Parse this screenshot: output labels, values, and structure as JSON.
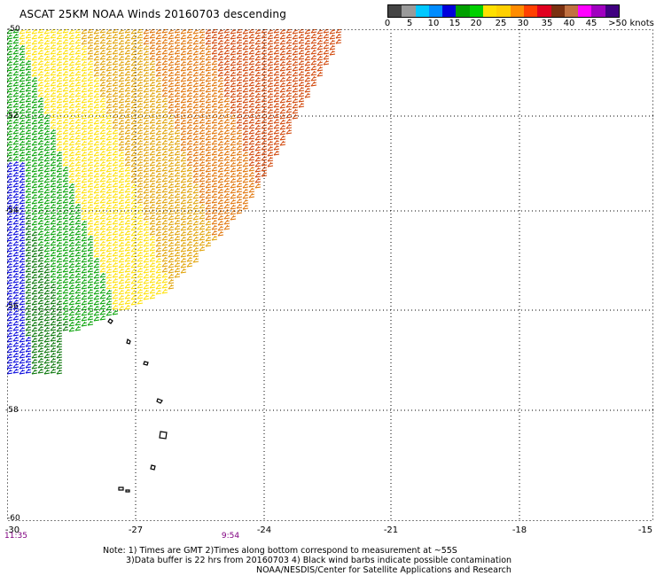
{
  "title": "ASCAT 25KM NOAA Winds 20160703 descending",
  "colorbar": {
    "labels": [
      "0",
      "5",
      "10",
      "15",
      "20",
      "25",
      "30",
      "35",
      "40",
      "45",
      ">50 knots"
    ],
    "colors": [
      "#444444",
      "#9a9a9a",
      "#00c8ff",
      "#008cff",
      "#0000dc",
      "#00a000",
      "#00d000",
      "#ffe000",
      "#ffd000",
      "#ff8c00",
      "#ff4000",
      "#e00020",
      "#7a3010",
      "#c07040",
      "#ff00ff",
      "#a000c0",
      "#400080"
    ]
  },
  "latitudes": [
    "-50",
    "-52",
    "-54",
    "-56",
    "-58",
    "-60"
  ],
  "longitudes": [
    "-30",
    "-27",
    "-24",
    "-21",
    "-18",
    "-15"
  ],
  "times": [
    "11:35",
    "9:54"
  ],
  "notes": {
    "line1": "Note: 1) Times are GMT 2)Times along bottom correspond to measurement at ~55S",
    "line2": "3)Data buffer is 22 hrs from 20160703 4) Black wind barbs indicate possible contamination",
    "line3": "NOAA/NESDIS/Center for Satellite Applications and Research"
  }
}
